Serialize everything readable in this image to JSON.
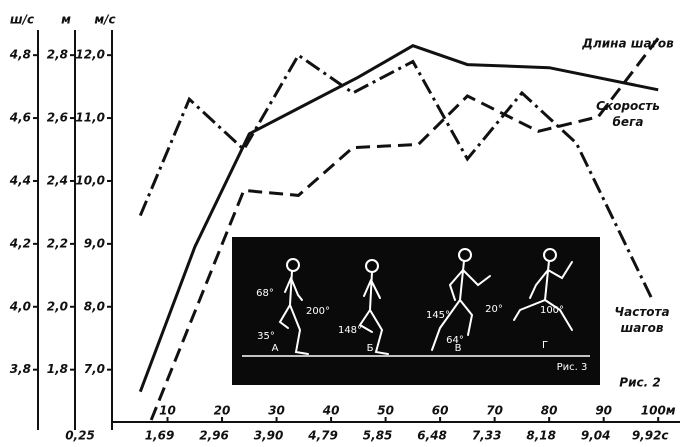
{
  "chart_data": {
    "type": "line",
    "axis_labels": {
      "y3": "ш/с",
      "y2": "м",
      "y": "м/с"
    },
    "xlim": [
      0,
      104
    ],
    "xticks": [
      10,
      20,
      30,
      40,
      50,
      60,
      70,
      80,
      90,
      {
        "value": 100,
        "label": "100м"
      }
    ],
    "time_labels": [
      "0,25",
      "1,69",
      "2,96",
      "3,90",
      "4,79",
      "5,85",
      "6,48",
      "7,33",
      "8,18",
      "9,04",
      "9,92с"
    ],
    "ylim": [
      6.2,
      12.4
    ],
    "yticks": [
      {
        "value": 7,
        "label": "7,0"
      },
      {
        "value": 8,
        "label": "8,0"
      },
      {
        "value": 9,
        "label": "9,0"
      },
      {
        "value": 10,
        "label": "10,0"
      },
      {
        "value": 11,
        "label": "11,0"
      },
      {
        "value": 12,
        "label": "12,0"
      }
    ],
    "y2lim": [
      1.64,
      2.88
    ],
    "y2ticks": [
      {
        "value": 1.8,
        "label": "1,8"
      },
      {
        "value": 2,
        "label": "2,0"
      },
      {
        "value": 2.2,
        "label": "2,2"
      },
      {
        "value": 2.4,
        "label": "2,4"
      },
      {
        "value": 2.6,
        "label": "2,6"
      },
      {
        "value": 2.8,
        "label": "2,8"
      }
    ],
    "y3lim": [
      3.64,
      4.88
    ],
    "y3ticks": [
      {
        "value": 3.8,
        "label": "3,8"
      },
      {
        "value": 4,
        "label": "4,0"
      },
      {
        "value": 4.2,
        "label": "4,2"
      },
      {
        "value": 4.4,
        "label": "4,4"
      },
      {
        "value": 4.6,
        "label": "4,6"
      },
      {
        "value": 4.8,
        "label": "4,8"
      }
    ],
    "series": [
      {
        "name": "Длина шагов",
        "color": "#111111",
        "axis": "y2",
        "style": "solid",
        "x": [
          5,
          15,
          25,
          35,
          45,
          55,
          65,
          80,
          100
        ],
        "values": [
          1.73,
          2.19,
          2.55,
          2.64,
          2.73,
          2.83,
          2.77,
          2.76,
          2.69
        ]
      },
      {
        "name": "Скорость бега",
        "color": "#111111",
        "axis": "y",
        "style": "dashed",
        "x": [
          7,
          24,
          34,
          44,
          56,
          65,
          78,
          89,
          100
        ],
        "values": [
          6.2,
          9.85,
          9.77,
          10.53,
          10.58,
          11.35,
          10.79,
          11.02,
          12.27
        ]
      },
      {
        "name": "Частота шагов",
        "color": "#111111",
        "axis": "y3",
        "style": "dashdot",
        "x": [
          5,
          14,
          24,
          34,
          44,
          55,
          65,
          75,
          85,
          99
        ],
        "values": [
          4.29,
          4.66,
          4.5,
          4.8,
          4.68,
          4.78,
          4.47,
          4.68,
          4.52,
          4.02
        ]
      }
    ],
    "caption": "Рис. 2",
    "inset": {
      "caption": "Рис. 3",
      "angles": [
        "68°",
        "35°",
        "200°",
        "148°",
        "145°",
        "20°",
        "64°",
        "100°"
      ],
      "letters": [
        "А",
        "Б",
        "В",
        "Г"
      ]
    }
  }
}
